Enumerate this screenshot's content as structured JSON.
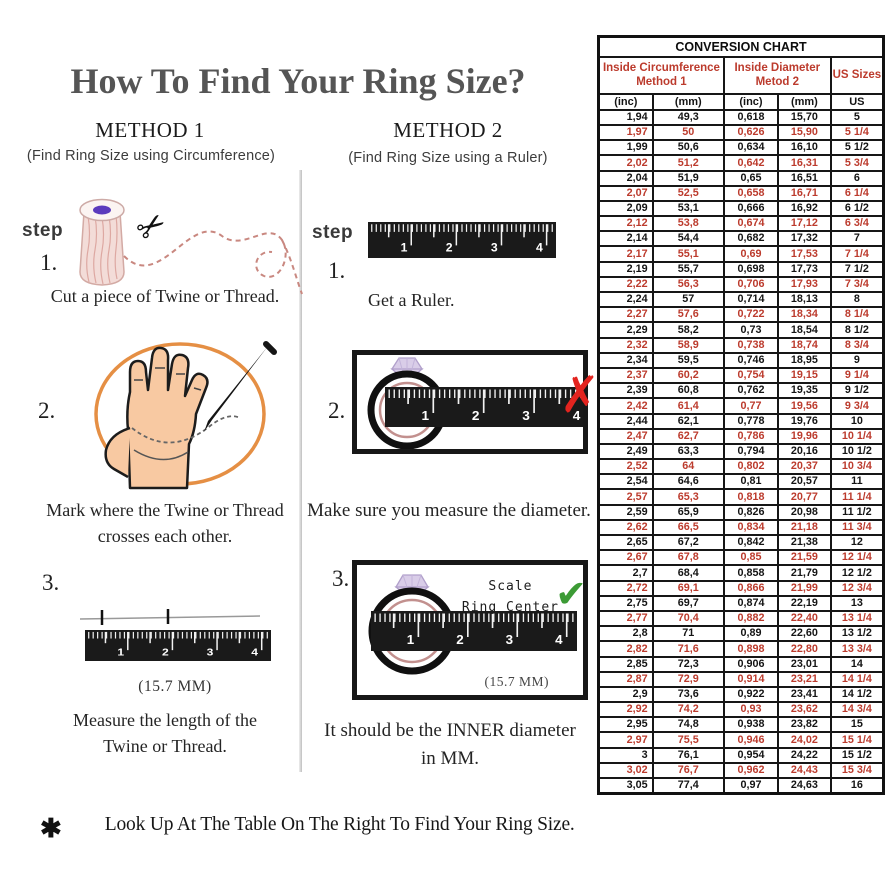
{
  "title": "How To Find Your Ring Size?",
  "method1": {
    "heading": "METHOD 1",
    "subheading": "(Find Ring Size using Circumference)",
    "step_label": "step",
    "steps": [
      {
        "number": "1.",
        "caption": "Cut a piece of Twine or Thread."
      },
      {
        "number": "2.",
        "caption_line1": "Mark where the Twine or Thread",
        "caption_line2": "crosses each other."
      },
      {
        "number": "3.",
        "measurement": "(15.7 MM)",
        "caption_line1": "Measure the length of the",
        "caption_line2": "Twine or Thread."
      }
    ]
  },
  "method2": {
    "heading": "METHOD 2",
    "subheading": "(Find Ring Size using a Ruler)",
    "step_label": "step",
    "steps": [
      {
        "number": "1.",
        "caption": "Get a Ruler."
      },
      {
        "number": "2.",
        "caption": "Make sure you measure the diameter."
      },
      {
        "number": "3.",
        "scale_note_line1": "Scale",
        "scale_note_line2": "Ring Center",
        "measurement": "(15.7 MM)",
        "caption_line1": "It should be the INNER diameter",
        "caption_line2": "in MM."
      }
    ]
  },
  "footnote": {
    "bullet": "✱",
    "text": "Look Up At The Table On The Right To Find Your Ring Size."
  },
  "table": {
    "title": "CONVERSION CHART",
    "group_headers": [
      {
        "line1": "Inside Circumference",
        "line2": "Method 1"
      },
      {
        "line1": "Inside Diameter",
        "line2": "Metod 2"
      },
      {
        "line1": "US Sizes",
        "line2": ""
      }
    ],
    "column_headers": [
      "(inc)",
      "(mm)",
      "(inc)",
      "(mm)",
      "US"
    ],
    "rows": [
      [
        "1,94",
        "49,3",
        "0,618",
        "15,70",
        "5"
      ],
      [
        "1,97",
        "50",
        "0,626",
        "15,90",
        "5 1/4"
      ],
      [
        "1,99",
        "50,6",
        "0,634",
        "16,10",
        "5 1/2"
      ],
      [
        "2,02",
        "51,2",
        "0,642",
        "16,31",
        "5 3/4"
      ],
      [
        "2,04",
        "51,9",
        "0,65",
        "16,51",
        "6"
      ],
      [
        "2,07",
        "52,5",
        "0,658",
        "16,71",
        "6 1/4"
      ],
      [
        "2,09",
        "53,1",
        "0,666",
        "16,92",
        "6 1/2"
      ],
      [
        "2,12",
        "53,8",
        "0,674",
        "17,12",
        "6 3/4"
      ],
      [
        "2,14",
        "54,4",
        "0,682",
        "17,32",
        "7"
      ],
      [
        "2,17",
        "55,1",
        "0,69",
        "17,53",
        "7 1/4"
      ],
      [
        "2,19",
        "55,7",
        "0,698",
        "17,73",
        "7 1/2"
      ],
      [
        "2,22",
        "56,3",
        "0,706",
        "17,93",
        "7 3/4"
      ],
      [
        "2,24",
        "57",
        "0,714",
        "18,13",
        "8"
      ],
      [
        "2,27",
        "57,6",
        "0,722",
        "18,34",
        "8 1/4"
      ],
      [
        "2,29",
        "58,2",
        "0,73",
        "18,54",
        "8 1/2"
      ],
      [
        "2,32",
        "58,9",
        "0,738",
        "18,74",
        "8 3/4"
      ],
      [
        "2,34",
        "59,5",
        "0,746",
        "18,95",
        "9"
      ],
      [
        "2,37",
        "60,2",
        "0,754",
        "19,15",
        "9 1/4"
      ],
      [
        "2,39",
        "60,8",
        "0,762",
        "19,35",
        "9 1/2"
      ],
      [
        "2,42",
        "61,4",
        "0,77",
        "19,56",
        "9 3/4"
      ],
      [
        "2,44",
        "62,1",
        "0,778",
        "19,76",
        "10"
      ],
      [
        "2,47",
        "62,7",
        "0,786",
        "19,96",
        "10 1/4"
      ],
      [
        "2,49",
        "63,3",
        "0,794",
        "20,16",
        "10 1/2"
      ],
      [
        "2,52",
        "64",
        "0,802",
        "20,37",
        "10 3/4"
      ],
      [
        "2,54",
        "64,6",
        "0,81",
        "20,57",
        "11"
      ],
      [
        "2,57",
        "65,3",
        "0,818",
        "20,77",
        "11 1/4"
      ],
      [
        "2,59",
        "65,9",
        "0,826",
        "20,98",
        "11 1/2"
      ],
      [
        "2,62",
        "66,5",
        "0,834",
        "21,18",
        "11 3/4"
      ],
      [
        "2,65",
        "67,2",
        "0,842",
        "21,38",
        "12"
      ],
      [
        "2,67",
        "67,8",
        "0,85",
        "21,59",
        "12 1/4"
      ],
      [
        "2,7",
        "68,4",
        "0,858",
        "21,79",
        "12 1/2"
      ],
      [
        "2,72",
        "69,1",
        "0,866",
        "21,99",
        "12 3/4"
      ],
      [
        "2,75",
        "69,7",
        "0,874",
        "22,19",
        "13"
      ],
      [
        "2,77",
        "70,4",
        "0,882",
        "22,40",
        "13 1/4"
      ],
      [
        "2,8",
        "71",
        "0,89",
        "22,60",
        "13 1/2"
      ],
      [
        "2,82",
        "71,6",
        "0,898",
        "22,80",
        "13 3/4"
      ],
      [
        "2,85",
        "72,3",
        "0,906",
        "23,01",
        "14"
      ],
      [
        "2,87",
        "72,9",
        "0,914",
        "23,21",
        "14 1/4"
      ],
      [
        "2,9",
        "73,6",
        "0,922",
        "23,41",
        "14 1/2"
      ],
      [
        "2,92",
        "74,2",
        "0,93",
        "23,62",
        "14 3/4"
      ],
      [
        "2,95",
        "74,8",
        "0,938",
        "23,82",
        "15"
      ],
      [
        "2,97",
        "75,5",
        "0,946",
        "24,02",
        "15 1/4"
      ],
      [
        "3",
        "76,1",
        "0,954",
        "24,22",
        "15 1/2"
      ],
      [
        "3,02",
        "76,7",
        "0,962",
        "24,43",
        "15 3/4"
      ],
      [
        "3,05",
        "77,4",
        "0,97",
        "24,63",
        "16"
      ]
    ]
  },
  "illustrations": {
    "ruler_numbers": [
      "1",
      "2",
      "3",
      "4"
    ],
    "cross_glyph": "✗",
    "check_glyph": "✔"
  },
  "colors": {
    "accent_red": "#bc3b2d",
    "cross_red": "#e3241f",
    "check_green": "#3c9b35",
    "title_gray": "#555555"
  }
}
